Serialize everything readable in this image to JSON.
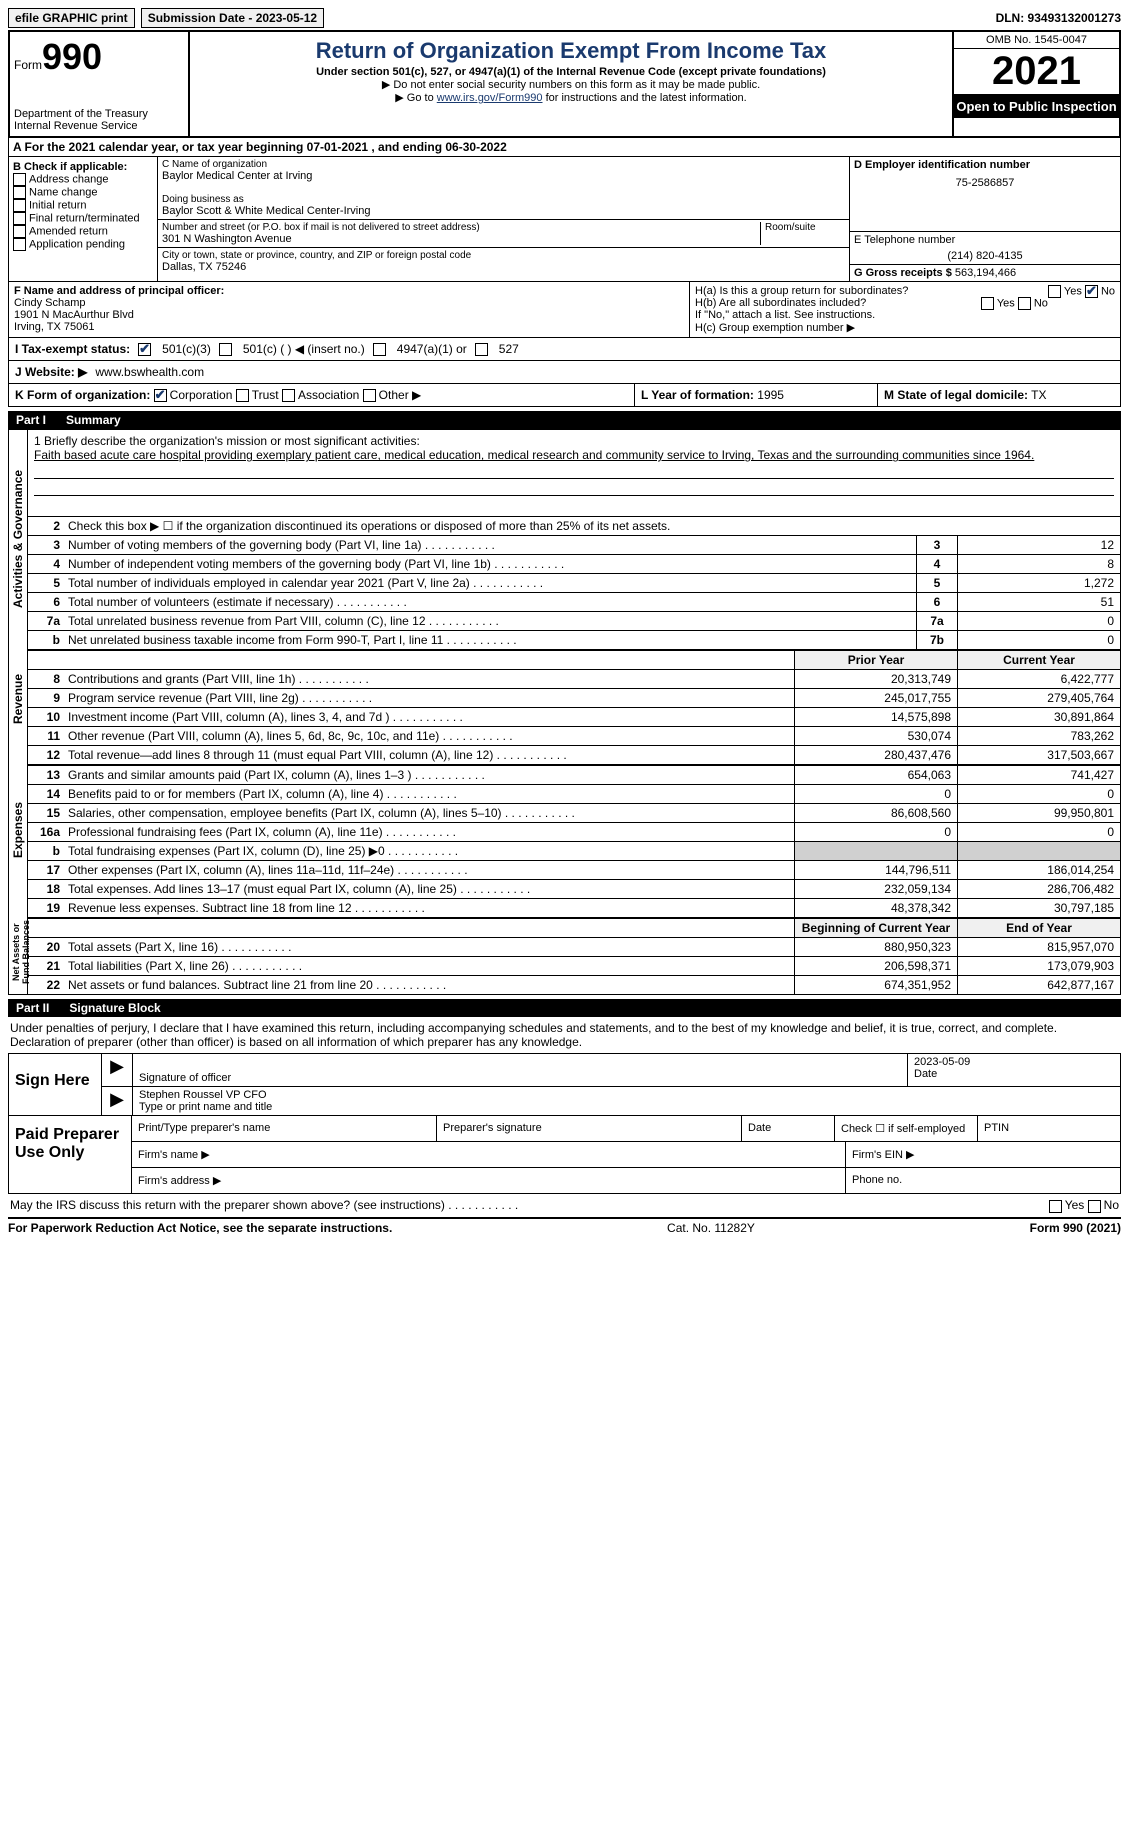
{
  "top": {
    "efile": "efile GRAPHIC print",
    "submission": "Submission Date - 2023-05-12",
    "dln": "DLN: 93493132001273"
  },
  "header": {
    "form_label": "Form",
    "form_number": "990",
    "dept": "Department of the Treasury",
    "irs": "Internal Revenue Service",
    "title": "Return of Organization Exempt From Income Tax",
    "subtitle": "Under section 501(c), 527, or 4947(a)(1) of the Internal Revenue Code (except private foundations)",
    "note1": "▶ Do not enter social security numbers on this form as it may be made public.",
    "note2_pre": "▶ Go to ",
    "note2_link": "www.irs.gov/Form990",
    "note2_post": " for instructions and the latest information.",
    "omb": "OMB No. 1545-0047",
    "year": "2021",
    "inspection": "Open to Public Inspection"
  },
  "A": {
    "text": "A For the 2021 calendar year, or tax year beginning 07-01-2021   , and ending 06-30-2022"
  },
  "B": {
    "label": "B Check if applicable:",
    "opts": [
      "Address change",
      "Name change",
      "Initial return",
      "Final return/terminated",
      "Amended return",
      "Application pending"
    ]
  },
  "C": {
    "name_label": "C Name of organization",
    "name": "Baylor Medical Center at Irving",
    "dba_label": "Doing business as",
    "dba": "Baylor Scott & White Medical Center-Irving",
    "addr_label": "Number and street (or P.O. box if mail is not delivered to street address)",
    "room_label": "Room/suite",
    "addr": "301 N Washington Avenue",
    "city_label": "City or town, state or province, country, and ZIP or foreign postal code",
    "city": "Dallas, TX  75246"
  },
  "D": {
    "label": "D Employer identification number",
    "value": "75-2586857"
  },
  "E": {
    "label": "E Telephone number",
    "value": "(214) 820-4135"
  },
  "G": {
    "label": "G Gross receipts $",
    "value": "563,194,466"
  },
  "F": {
    "label": "F  Name and address of principal officer:",
    "name": "Cindy Schamp",
    "addr1": "1901 N MacAurthur Blvd",
    "addr2": "Irving, TX  75061"
  },
  "H": {
    "a": "H(a)  Is this a group return for subordinates?",
    "b": "H(b)  Are all subordinates included?",
    "b_note": "If \"No,\" attach a list. See instructions.",
    "c": "H(c)  Group exemption number ▶",
    "yes": "Yes",
    "no": "No"
  },
  "I": {
    "label": "I   Tax-exempt status:",
    "o1": "501(c)(3)",
    "o2": "501(c) (  ) ◀ (insert no.)",
    "o3": "4947(a)(1) or",
    "o4": "527"
  },
  "J": {
    "label": "J   Website: ▶",
    "value": "www.bswhealth.com"
  },
  "K": {
    "label": "K Form of organization:",
    "o1": "Corporation",
    "o2": "Trust",
    "o3": "Association",
    "o4": "Other ▶"
  },
  "L": {
    "label": "L Year of formation:",
    "value": "1995"
  },
  "M": {
    "label": "M State of legal domicile:",
    "value": "TX"
  },
  "part1": {
    "label": "Part I",
    "title": "Summary"
  },
  "summary": {
    "mission_label": "1   Briefly describe the organization's mission or most significant activities:",
    "mission": "Faith based acute care hospital providing exemplary patient care, medical education, medical research and community service to Irving, Texas and the surrounding communities since 1964.",
    "line2": "Check this box ▶ ☐  if the organization discontinued its operations or disposed of more than 25% of its net assets.",
    "lines_ag": [
      {
        "n": "3",
        "d": "Number of voting members of the governing body (Part VI, line 1a)",
        "box": "3",
        "v": "12"
      },
      {
        "n": "4",
        "d": "Number of independent voting members of the governing body (Part VI, line 1b)",
        "box": "4",
        "v": "8"
      },
      {
        "n": "5",
        "d": "Total number of individuals employed in calendar year 2021 (Part V, line 2a)",
        "box": "5",
        "v": "1,272"
      },
      {
        "n": "6",
        "d": "Total number of volunteers (estimate if necessary)",
        "box": "6",
        "v": "51"
      },
      {
        "n": "7a",
        "d": "Total unrelated business revenue from Part VIII, column (C), line 12",
        "box": "7a",
        "v": "0"
      },
      {
        "n": "b",
        "d": "Net unrelated business taxable income from Form 990-T, Part I, line 11",
        "box": "7b",
        "v": "0"
      }
    ],
    "hdr_prior": "Prior Year",
    "hdr_curr": "Current Year",
    "rev": [
      {
        "n": "8",
        "d": "Contributions and grants (Part VIII, line 1h)",
        "p": "20,313,749",
        "c": "6,422,777"
      },
      {
        "n": "9",
        "d": "Program service revenue (Part VIII, line 2g)",
        "p": "245,017,755",
        "c": "279,405,764"
      },
      {
        "n": "10",
        "d": "Investment income (Part VIII, column (A), lines 3, 4, and 7d )",
        "p": "14,575,898",
        "c": "30,891,864"
      },
      {
        "n": "11",
        "d": "Other revenue (Part VIII, column (A), lines 5, 6d, 8c, 9c, 10c, and 11e)",
        "p": "530,074",
        "c": "783,262"
      },
      {
        "n": "12",
        "d": "Total revenue—add lines 8 through 11 (must equal Part VIII, column (A), line 12)",
        "p": "280,437,476",
        "c": "317,503,667"
      }
    ],
    "exp": [
      {
        "n": "13",
        "d": "Grants and similar amounts paid (Part IX, column (A), lines 1–3 )",
        "p": "654,063",
        "c": "741,427"
      },
      {
        "n": "14",
        "d": "Benefits paid to or for members (Part IX, column (A), line 4)",
        "p": "0",
        "c": "0"
      },
      {
        "n": "15",
        "d": "Salaries, other compensation, employee benefits (Part IX, column (A), lines 5–10)",
        "p": "86,608,560",
        "c": "99,950,801"
      },
      {
        "n": "16a",
        "d": "Professional fundraising fees (Part IX, column (A), line 11e)",
        "p": "0",
        "c": "0"
      },
      {
        "n": "b",
        "d": "Total fundraising expenses (Part IX, column (D), line 25) ▶0",
        "p": "",
        "c": "",
        "shade": true
      },
      {
        "n": "17",
        "d": "Other expenses (Part IX, column (A), lines 11a–11d, 11f–24e)",
        "p": "144,796,511",
        "c": "186,014,254"
      },
      {
        "n": "18",
        "d": "Total expenses. Add lines 13–17 (must equal Part IX, column (A), line 25)",
        "p": "232,059,134",
        "c": "286,706,482"
      },
      {
        "n": "19",
        "d": "Revenue less expenses. Subtract line 18 from line 12",
        "p": "48,378,342",
        "c": "30,797,185"
      }
    ],
    "hdr_beg": "Beginning of Current Year",
    "hdr_end": "End of Year",
    "na": [
      {
        "n": "20",
        "d": "Total assets (Part X, line 16)",
        "p": "880,950,323",
        "c": "815,957,070"
      },
      {
        "n": "21",
        "d": "Total liabilities (Part X, line 26)",
        "p": "206,598,371",
        "c": "173,079,903"
      },
      {
        "n": "22",
        "d": "Net assets or fund balances. Subtract line 21 from line 20",
        "p": "674,351,952",
        "c": "642,877,167"
      }
    ],
    "tabs": {
      "ag": "Activities & Governance",
      "rev": "Revenue",
      "exp": "Expenses",
      "na": "Net Assets or Fund Balances"
    }
  },
  "part2": {
    "label": "Part II",
    "title": "Signature Block"
  },
  "sig": {
    "penalty": "Under penalties of perjury, I declare that I have examined this return, including accompanying schedules and statements, and to the best of my knowledge and belief, it is true, correct, and complete. Declaration of preparer (other than officer) is based on all information of which preparer has any knowledge.",
    "sign_here": "Sign Here",
    "sig_officer": "Signature of officer",
    "date": "Date",
    "date_val": "2023-05-09",
    "name": "Stephen Roussel  VP CFO",
    "name_label": "Type or print name and title",
    "paid": "Paid Preparer Use Only",
    "p1": "Print/Type preparer's name",
    "p2": "Preparer's signature",
    "p3": "Date",
    "p4": "Check ☐ if self-employed",
    "p5": "PTIN",
    "firm_name": "Firm's name   ▶",
    "firm_ein": "Firm's EIN ▶",
    "firm_addr": "Firm's address ▶",
    "phone": "Phone no."
  },
  "footer": {
    "discuss": "May the IRS discuss this return with the preparer shown above? (see instructions)",
    "yes": "Yes",
    "no": "No",
    "paperwork": "For Paperwork Reduction Act Notice, see the separate instructions.",
    "cat": "Cat. No. 11282Y",
    "form": "Form 990 (2021)"
  }
}
